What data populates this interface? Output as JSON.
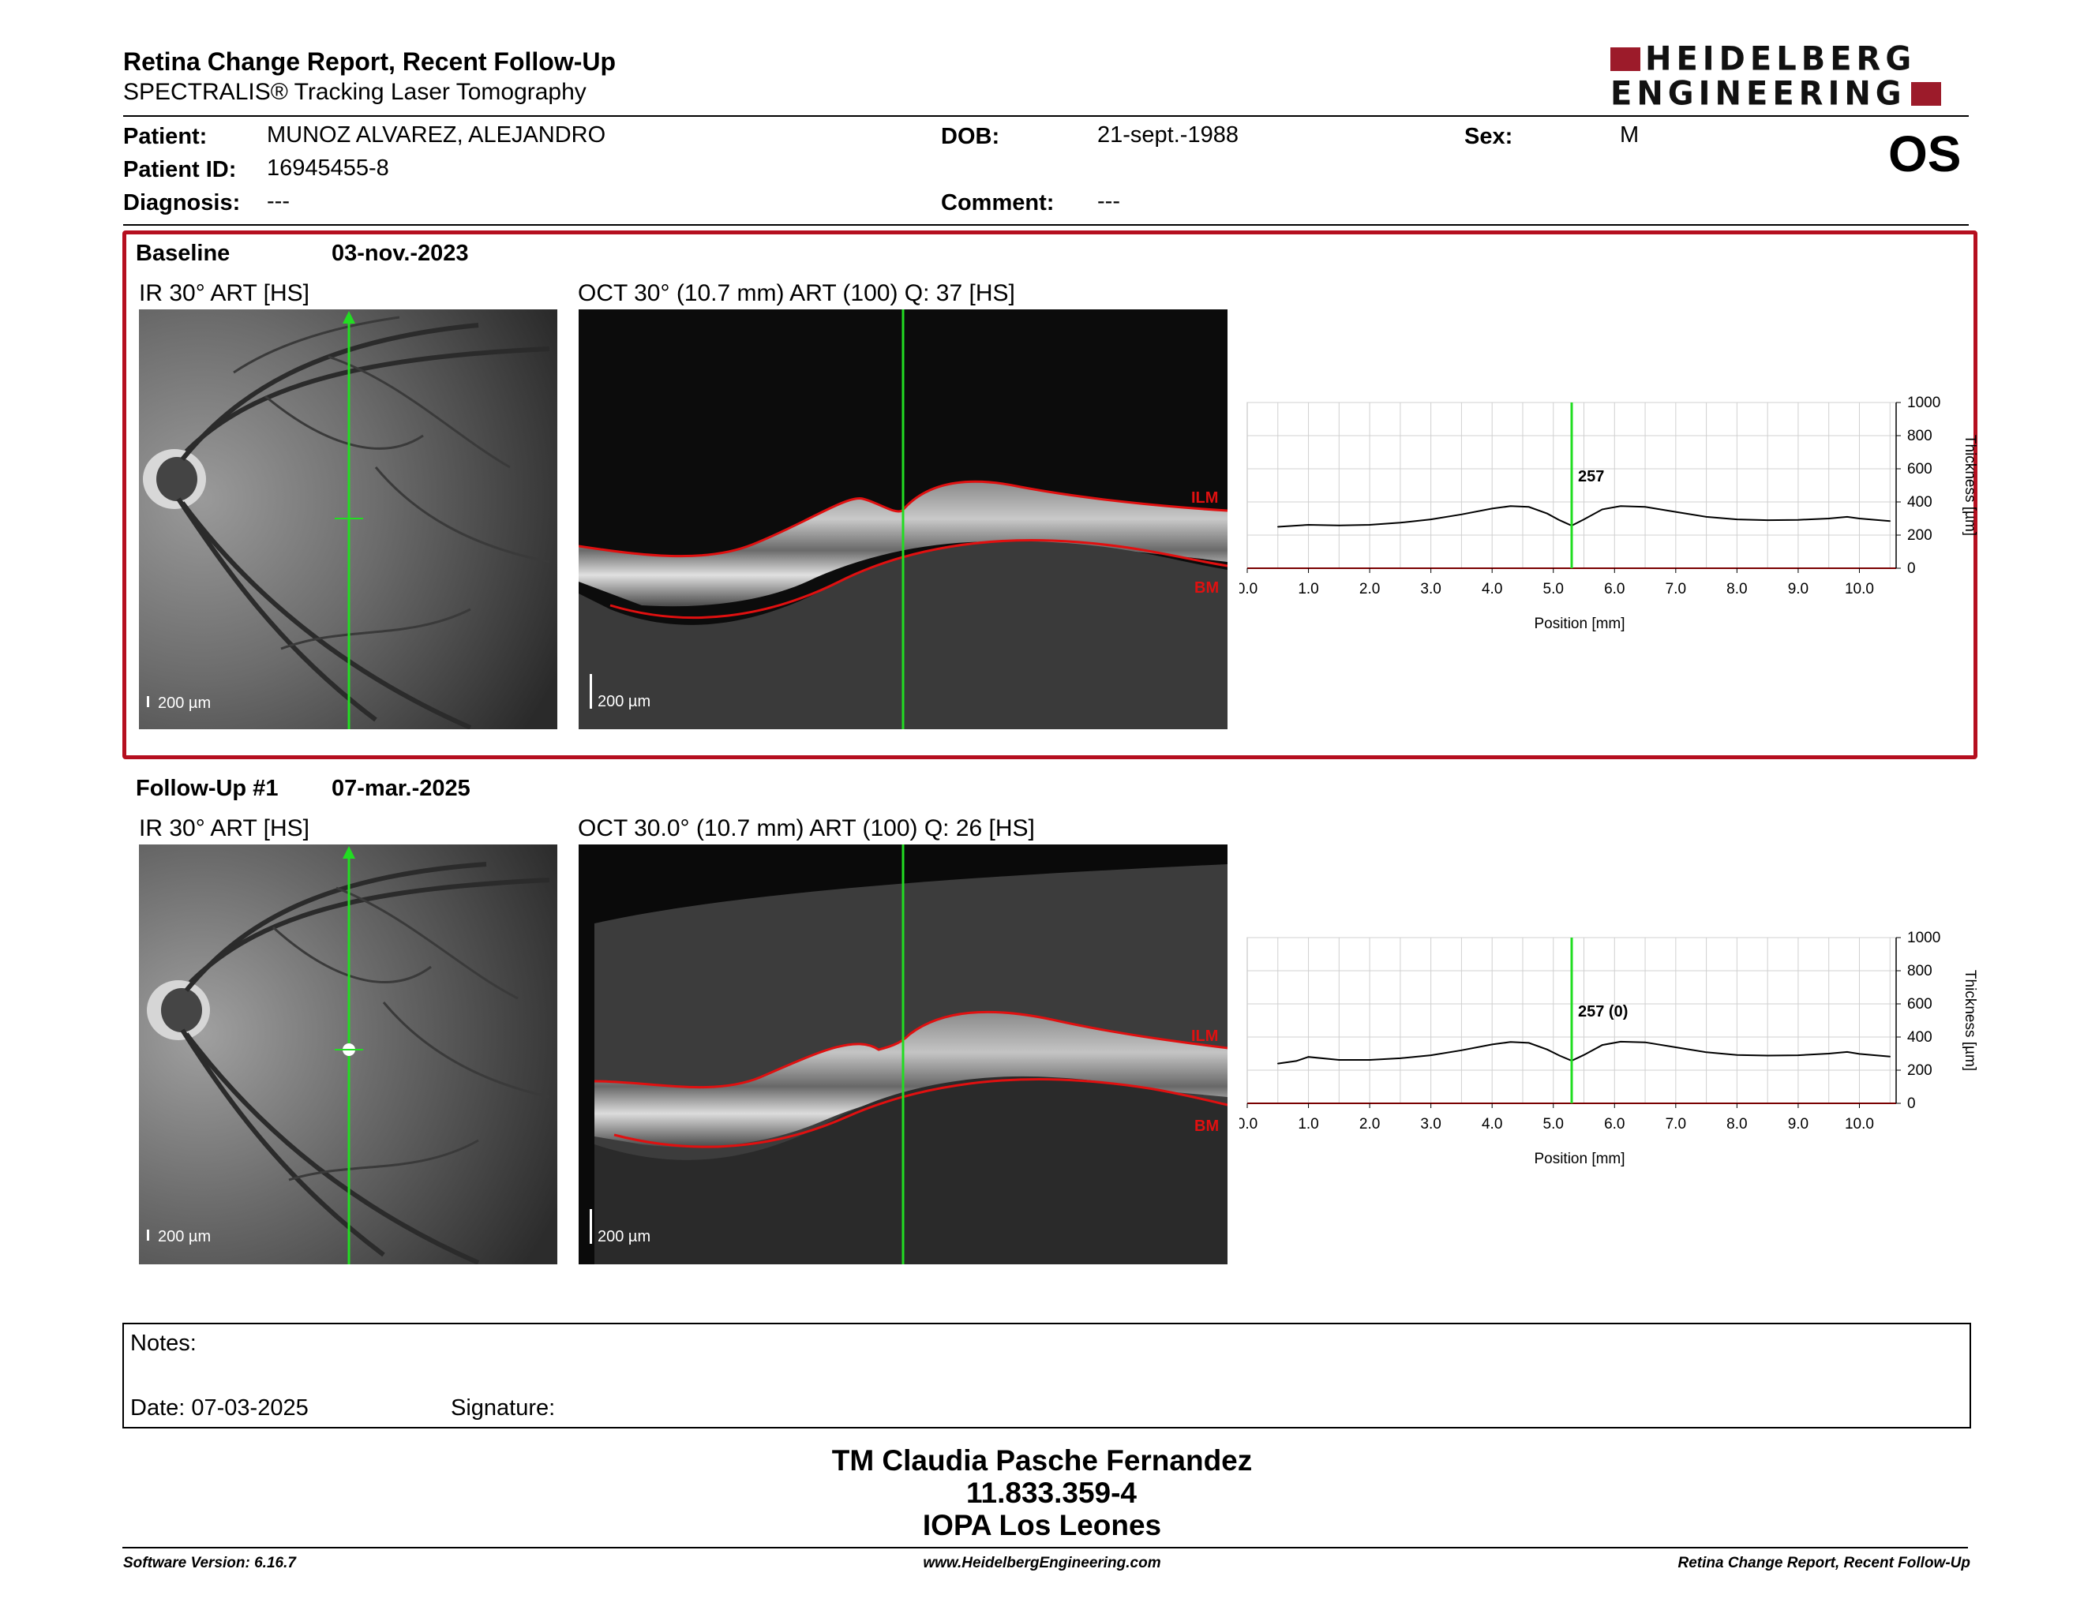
{
  "header": {
    "title": "Retina Change Report, Recent Follow-Up",
    "subtitle": "SPECTRALIS® Tracking Laser Tomography",
    "logo_line1": "HEIDELBERG",
    "logo_line2": "ENGINEERING",
    "eye": "OS"
  },
  "patient": {
    "name_label": "Patient:",
    "name": "MUNOZ ALVAREZ, ALEJANDRO",
    "id_label": "Patient ID:",
    "id": "16945455-8",
    "diagnosis_label": "Diagnosis:",
    "diagnosis": "---",
    "dob_label": "DOB:",
    "dob": "21-sept.-1988",
    "comment_label": "Comment:",
    "comment": "---",
    "sex_label": "Sex:",
    "sex": "M"
  },
  "baseline": {
    "label": "Baseline",
    "date": "03-nov.-2023",
    "ir_label": "IR 30° ART [HS]",
    "oct_label": "OCT 30° (10.7 mm) ART (100) Q: 37 [HS]",
    "scale_ir": "200 µm",
    "scale_oct": "200 µm",
    "ilm": "ILM",
    "bm": "BM",
    "marker_value": "257"
  },
  "followup": {
    "label": "Follow-Up #1",
    "date": "07-mar.-2025",
    "ir_label": "IR 30° ART [HS]",
    "oct_label": "OCT 30.0° (10.7 mm) ART (100) Q: 26 [HS]",
    "scale_ir": "200 µm",
    "scale_oct": "200 µm",
    "ilm": "ILM",
    "bm": "BM",
    "marker_value": "257 (0)"
  },
  "chart_data": [
    {
      "type": "line",
      "xlabel": "Position [mm]",
      "ylabel": "Thickness [µm]",
      "xlim": [
        0,
        10.6
      ],
      "ylim": [
        0,
        1000
      ],
      "x_ticks": [
        "0.0",
        "1.0",
        "2.0",
        "3.0",
        "4.0",
        "5.0",
        "6.0",
        "7.0",
        "8.0",
        "9.0",
        "10.0"
      ],
      "y_ticks": [
        "0",
        "200",
        "400",
        "600",
        "800",
        "1000"
      ],
      "marker_x": 5.3,
      "marker_label": "257",
      "grid": true,
      "series": [
        {
          "x": [
            0.5,
            1.0,
            1.5,
            2.0,
            2.5,
            3.0,
            3.5,
            4.0,
            4.3,
            4.6,
            4.9,
            5.1,
            5.3,
            5.5,
            5.8,
            6.1,
            6.5,
            7.0,
            7.5,
            8.0,
            8.5,
            9.0,
            9.5,
            9.8,
            10.0,
            10.5
          ],
          "y": [
            250,
            262,
            258,
            262,
            275,
            295,
            325,
            360,
            375,
            370,
            330,
            290,
            257,
            295,
            355,
            375,
            370,
            340,
            310,
            295,
            290,
            292,
            300,
            310,
            300,
            285
          ]
        }
      ]
    },
    {
      "type": "line",
      "xlabel": "Position [mm]",
      "ylabel": "Thickness [µm]",
      "xlim": [
        0,
        10.6
      ],
      "ylim": [
        0,
        1000
      ],
      "x_ticks": [
        "0.0",
        "1.0",
        "2.0",
        "3.0",
        "4.0",
        "5.0",
        "6.0",
        "7.0",
        "8.0",
        "9.0",
        "10.0"
      ],
      "y_ticks": [
        "0",
        "200",
        "400",
        "600",
        "800",
        "1000"
      ],
      "marker_x": 5.3,
      "marker_label": "257 (0)",
      "grid": true,
      "series": [
        {
          "x": [
            0.5,
            0.8,
            1.0,
            1.5,
            2.0,
            2.5,
            3.0,
            3.5,
            4.0,
            4.3,
            4.6,
            4.9,
            5.1,
            5.3,
            5.5,
            5.8,
            6.1,
            6.5,
            7.0,
            7.5,
            8.0,
            8.5,
            9.0,
            9.5,
            9.8,
            10.0,
            10.5
          ],
          "y": [
            240,
            255,
            280,
            262,
            262,
            272,
            290,
            320,
            355,
            370,
            365,
            325,
            288,
            257,
            292,
            352,
            372,
            368,
            338,
            308,
            292,
            288,
            290,
            300,
            310,
            298,
            282
          ]
        }
      ]
    }
  ],
  "notes": {
    "label": "Notes:",
    "date_label": "Date: 07-03-2025",
    "signature_label": "Signature:"
  },
  "clinic": {
    "line1": "TM Claudia Pasche Fernandez",
    "line2": "11.833.359-4",
    "line3": "IOPA Los Leones"
  },
  "footer": {
    "left": "Software Version: 6.16.7",
    "center": "www.HeidelbergEngineering.com",
    "right": "Retina Change Report, Recent Follow-Up"
  },
  "colors": {
    "frame": "#b50f1f",
    "marker": "#22dd22",
    "segmentation": "#e01010",
    "logo_square": "#9c1b2a"
  }
}
